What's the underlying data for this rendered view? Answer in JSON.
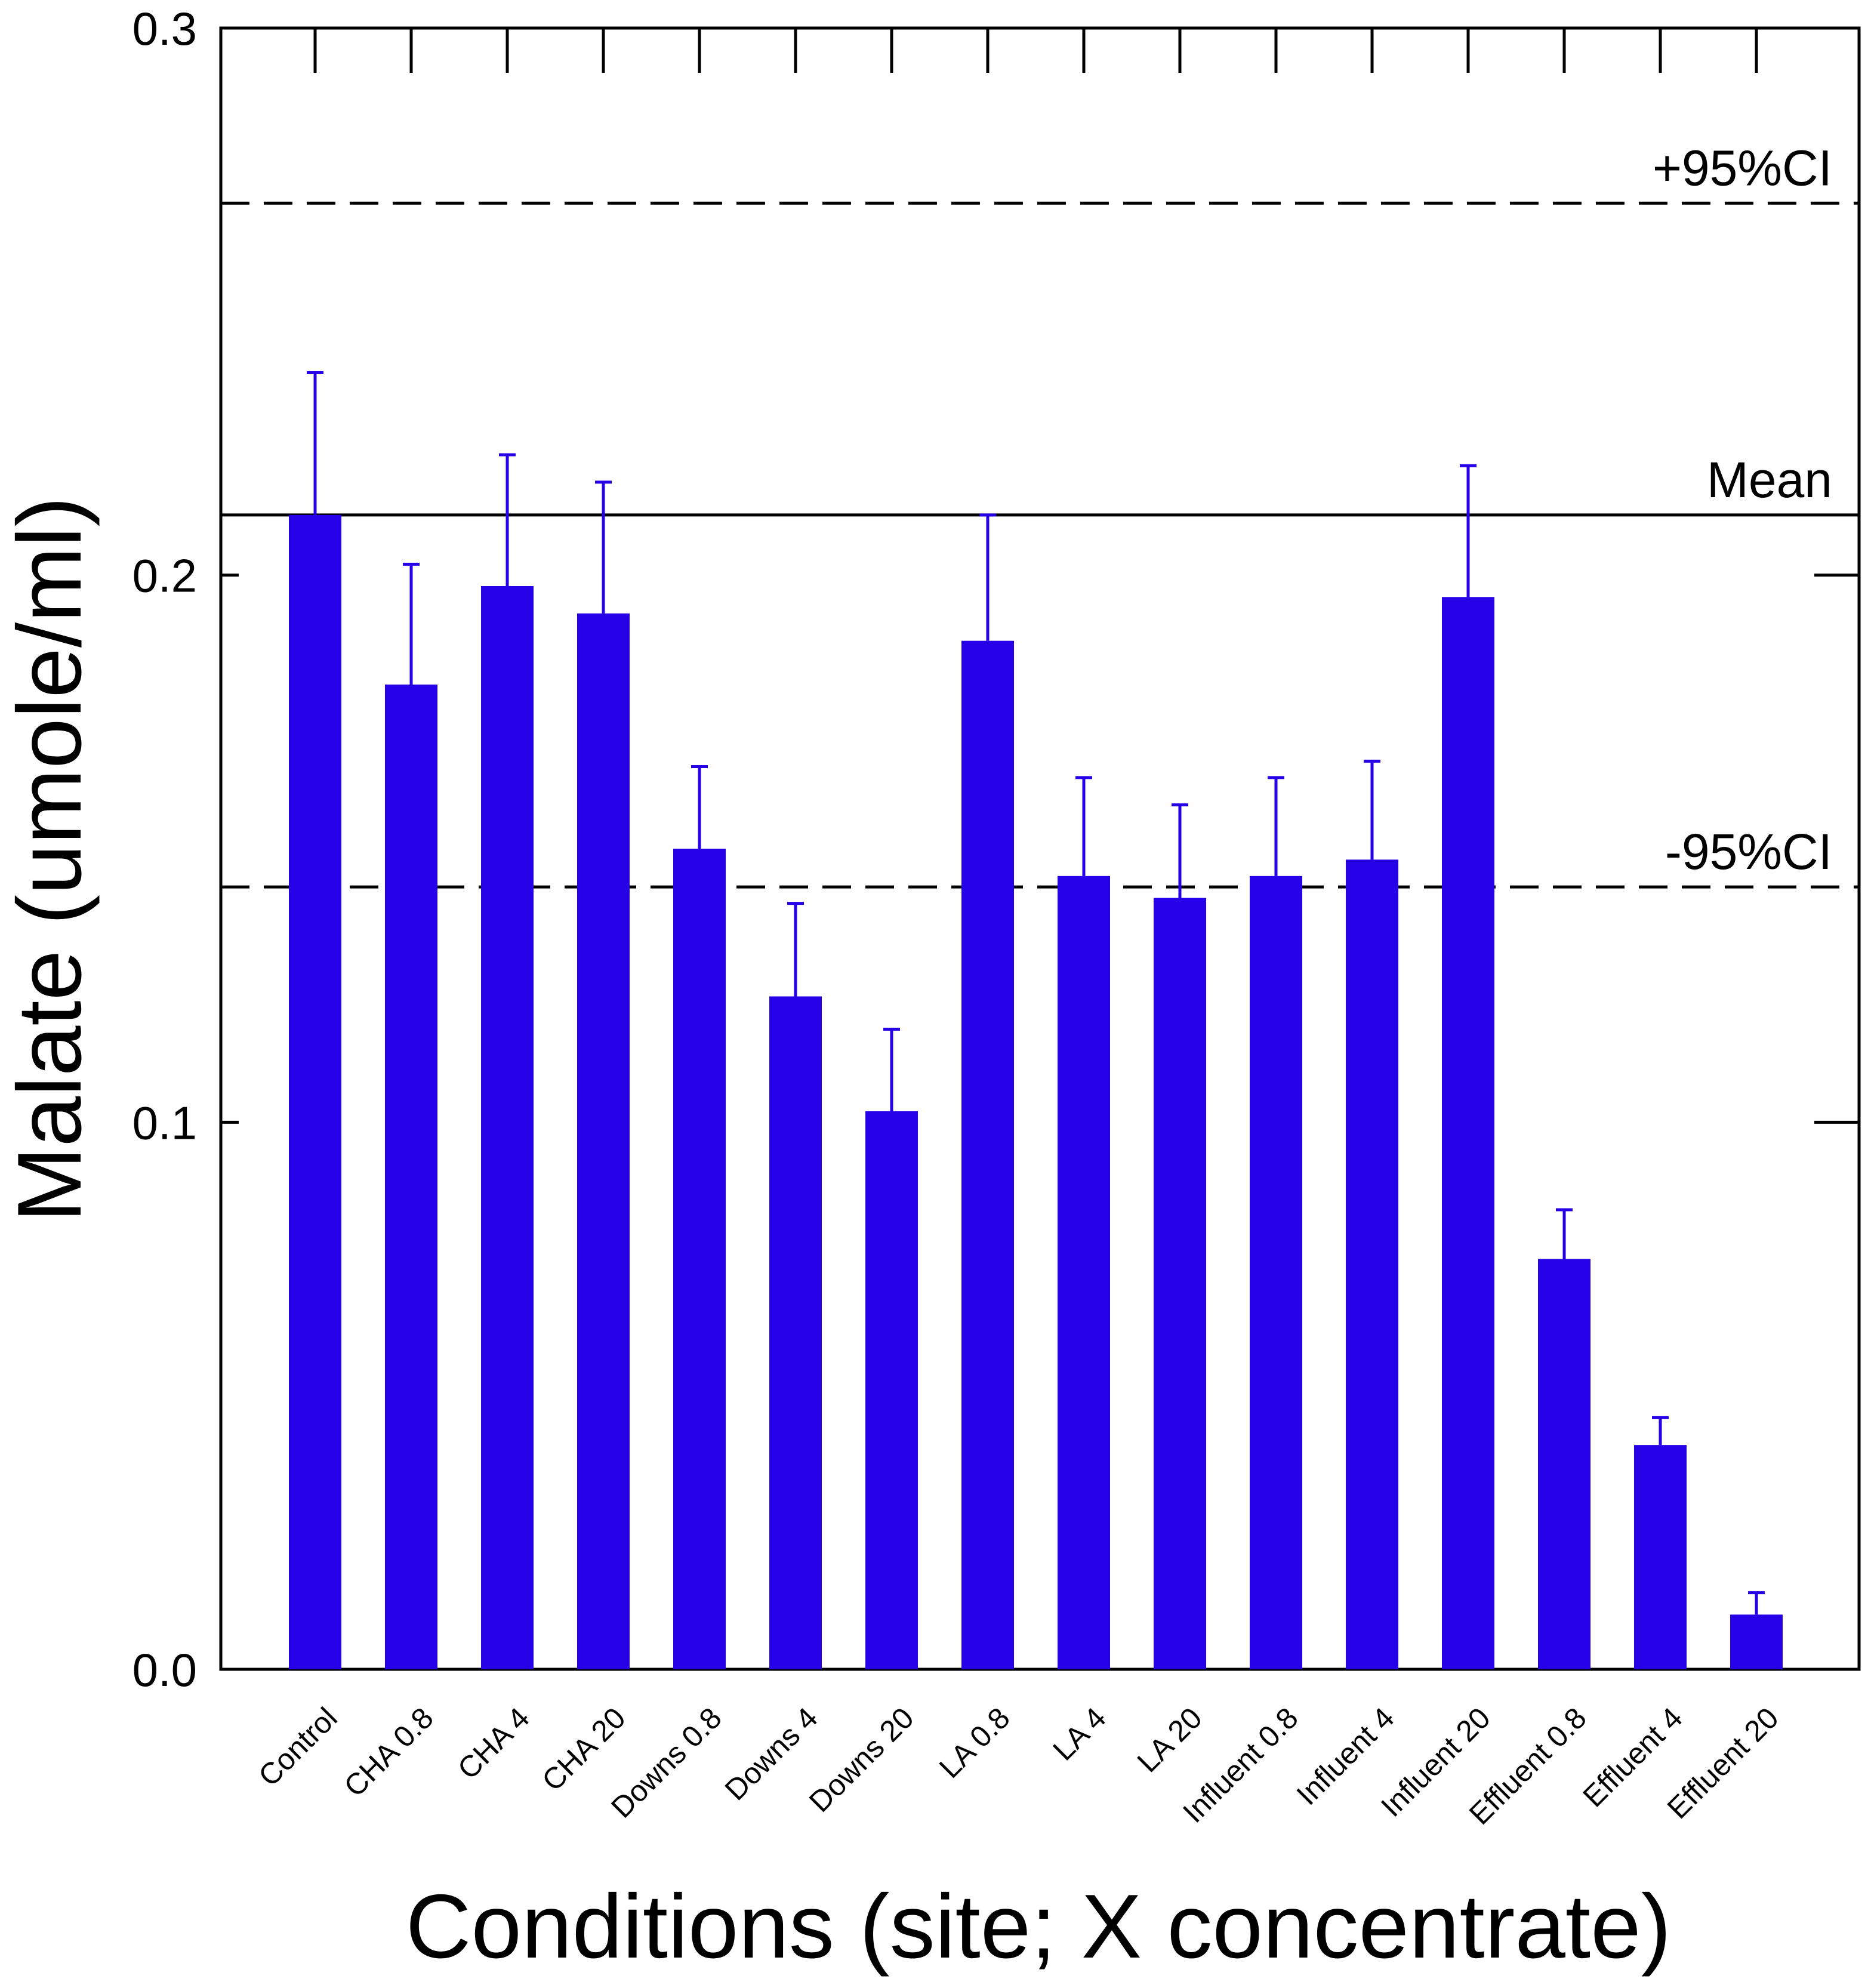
{
  "chart_data": {
    "type": "bar",
    "xlabel": "Conditions (site; X concentrate)",
    "ylabel": "Malate (umole/ml)",
    "ylim": [
      0,
      0.3
    ],
    "yticks": [
      "0.0",
      "0.1",
      "0.2",
      "0.3"
    ],
    "bar_color": "#2600e6",
    "categories": [
      "Control",
      "CHA  0.8",
      "CHA  4",
      "CHA 20",
      "Downs 0.8",
      "Downs 4",
      "Downs 20",
      "LA  0.8",
      "LA  4",
      "LA  20",
      "Influent 0.8",
      "Influent 4",
      "Influent 20",
      "Effluent 0.8",
      "Effluent 4",
      "Effluent 20"
    ],
    "values": [
      0.211,
      0.18,
      0.198,
      0.193,
      0.15,
      0.123,
      0.102,
      0.188,
      0.145,
      0.141,
      0.145,
      0.148,
      0.196,
      0.075,
      0.041,
      0.01
    ],
    "errors": [
      0.026,
      0.022,
      0.024,
      0.024,
      0.015,
      0.017,
      0.015,
      0.023,
      0.018,
      0.017,
      0.018,
      0.018,
      0.024,
      0.009,
      0.005,
      0.004
    ],
    "reference_lines": [
      {
        "label": "+95%CI",
        "value": 0.268,
        "style": "dashed"
      },
      {
        "label": "Mean",
        "value": 0.211,
        "style": "solid"
      },
      {
        "label": "-95%CI",
        "value": 0.143,
        "style": "dashed"
      }
    ],
    "grid": false
  }
}
